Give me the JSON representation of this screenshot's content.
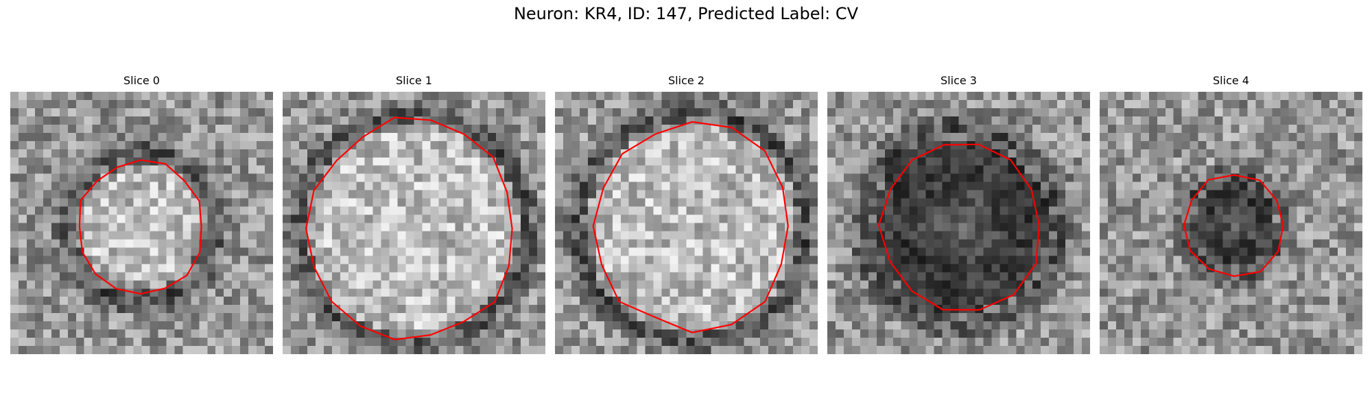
{
  "figure": {
    "title": "Neuron: KR4, ID: 147, Predicted Label: CV"
  },
  "panels": [
    {
      "title": "Slice 0",
      "center_brightness": "light",
      "contour": "small-ring"
    },
    {
      "title": "Slice 1",
      "center_brightness": "light",
      "contour": "large-ring"
    },
    {
      "title": "Slice 2",
      "center_brightness": "light",
      "contour": "large-ring"
    },
    {
      "title": "Slice 3",
      "center_brightness": "dark",
      "contour": "medium-ring"
    },
    {
      "title": "Slice 4",
      "center_brightness": "dark",
      "contour": "small-ring"
    }
  ],
  "colors": {
    "contour": "#ff0000",
    "background": "#ffffff"
  }
}
